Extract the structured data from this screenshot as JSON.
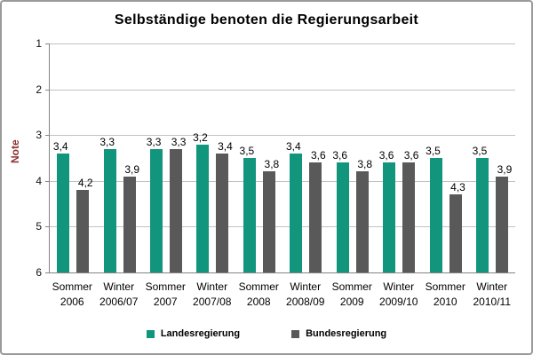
{
  "chart_data": {
    "type": "bar",
    "title": "Selbständige benoten die Regierungsarbeit",
    "ylabel": "Note",
    "ylabel_color": "#8b3232",
    "ylim": [
      1,
      6
    ],
    "y_axis_reversed": true,
    "y_ticks": [
      "1",
      "2",
      "3",
      "4",
      "5",
      "6"
    ],
    "grid": true,
    "legend_position": "bottom",
    "categories": [
      {
        "top": "Sommer",
        "bottom": "2006"
      },
      {
        "top": "Winter",
        "bottom": "2006/07"
      },
      {
        "top": "Sommer",
        "bottom": "2007"
      },
      {
        "top": "Winter",
        "bottom": "2007/08"
      },
      {
        "top": "Sommer",
        "bottom": "2008"
      },
      {
        "top": "Winter",
        "bottom": "2008/09"
      },
      {
        "top": "Sommer",
        "bottom": "2009"
      },
      {
        "top": "Winter",
        "bottom": "2009/10"
      },
      {
        "top": "Sommer",
        "bottom": "2010"
      },
      {
        "top": "Winter",
        "bottom": "2010/11"
      }
    ],
    "series": [
      {
        "name": "Landesregierung",
        "color": "#12957d",
        "values": [
          3.4,
          3.3,
          3.3,
          3.2,
          3.5,
          3.4,
          3.6,
          3.6,
          3.5,
          3.5
        ],
        "labels": [
          "3,4",
          "3,3",
          "3,3",
          "3,2",
          "3,5",
          "3,4",
          "3,6",
          "3,6",
          "3,5",
          "3,5"
        ]
      },
      {
        "name": "Bundesregierung",
        "color": "#595959",
        "values": [
          4.2,
          3.9,
          3.3,
          3.4,
          3.8,
          3.6,
          3.8,
          3.6,
          4.3,
          3.9
        ],
        "labels": [
          "4,2",
          "3,9",
          "3,3",
          "3,4",
          "3,8",
          "3,6",
          "3,8",
          "3,6",
          "4,3",
          "3,9"
        ]
      }
    ]
  }
}
